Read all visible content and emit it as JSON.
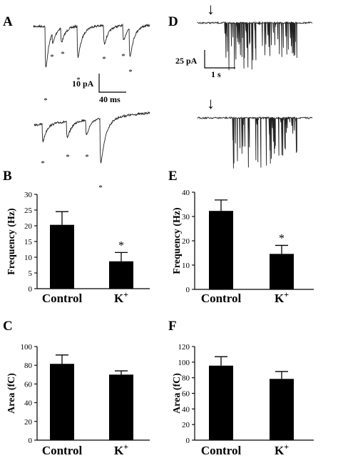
{
  "panels": {
    "A": "A",
    "B": "B",
    "C": "C",
    "D": "D",
    "E": "E",
    "F": "F"
  },
  "scale_bars": {
    "A": {
      "amplitude": "10 pA",
      "time": "40 ms"
    },
    "D": {
      "amplitude": "25 pA",
      "time": "1 s"
    }
  },
  "markers": {
    "event": "*",
    "stimulus": "↓"
  },
  "k_label": {
    "base": "K",
    "sup": "+"
  },
  "chart_data": [
    {
      "panel": "B",
      "type": "bar",
      "categories": [
        "Control",
        "K+"
      ],
      "values": [
        20.3,
        8.7
      ],
      "errors": [
        4.2,
        2.8
      ],
      "ylabel": "Frequency (Hz)",
      "ylim": [
        0,
        30
      ],
      "yticks": [
        0,
        5,
        10,
        15,
        20,
        25,
        30
      ],
      "significance": [
        "",
        "*"
      ]
    },
    {
      "panel": "E",
      "type": "bar",
      "categories": [
        "Control",
        "K+"
      ],
      "values": [
        32.3,
        14.6
      ],
      "errors": [
        4.5,
        3.5
      ],
      "ylabel": "Frequency (Hz)",
      "ylim": [
        0,
        40
      ],
      "yticks": [
        0,
        10,
        20,
        30,
        40
      ],
      "significance": [
        "",
        "*"
      ]
    },
    {
      "panel": "C",
      "type": "bar",
      "categories": [
        "Control",
        "K+"
      ],
      "values": [
        81.5,
        70.0
      ],
      "errors": [
        9.5,
        4.0
      ],
      "ylabel": "Area (fC)",
      "ylim": [
        0,
        100
      ],
      "yticks": [
        0,
        20,
        40,
        60,
        80,
        100
      ],
      "significance": [
        "",
        ""
      ]
    },
    {
      "panel": "F",
      "type": "bar",
      "categories": [
        "Control",
        "K+"
      ],
      "values": [
        95.5,
        78.5
      ],
      "errors": [
        11.5,
        9.5
      ],
      "ylabel": "Area (fC)",
      "ylim": [
        0,
        120
      ],
      "yticks": [
        0,
        20,
        40,
        60,
        80,
        100,
        120
      ],
      "significance": [
        "",
        ""
      ]
    }
  ]
}
